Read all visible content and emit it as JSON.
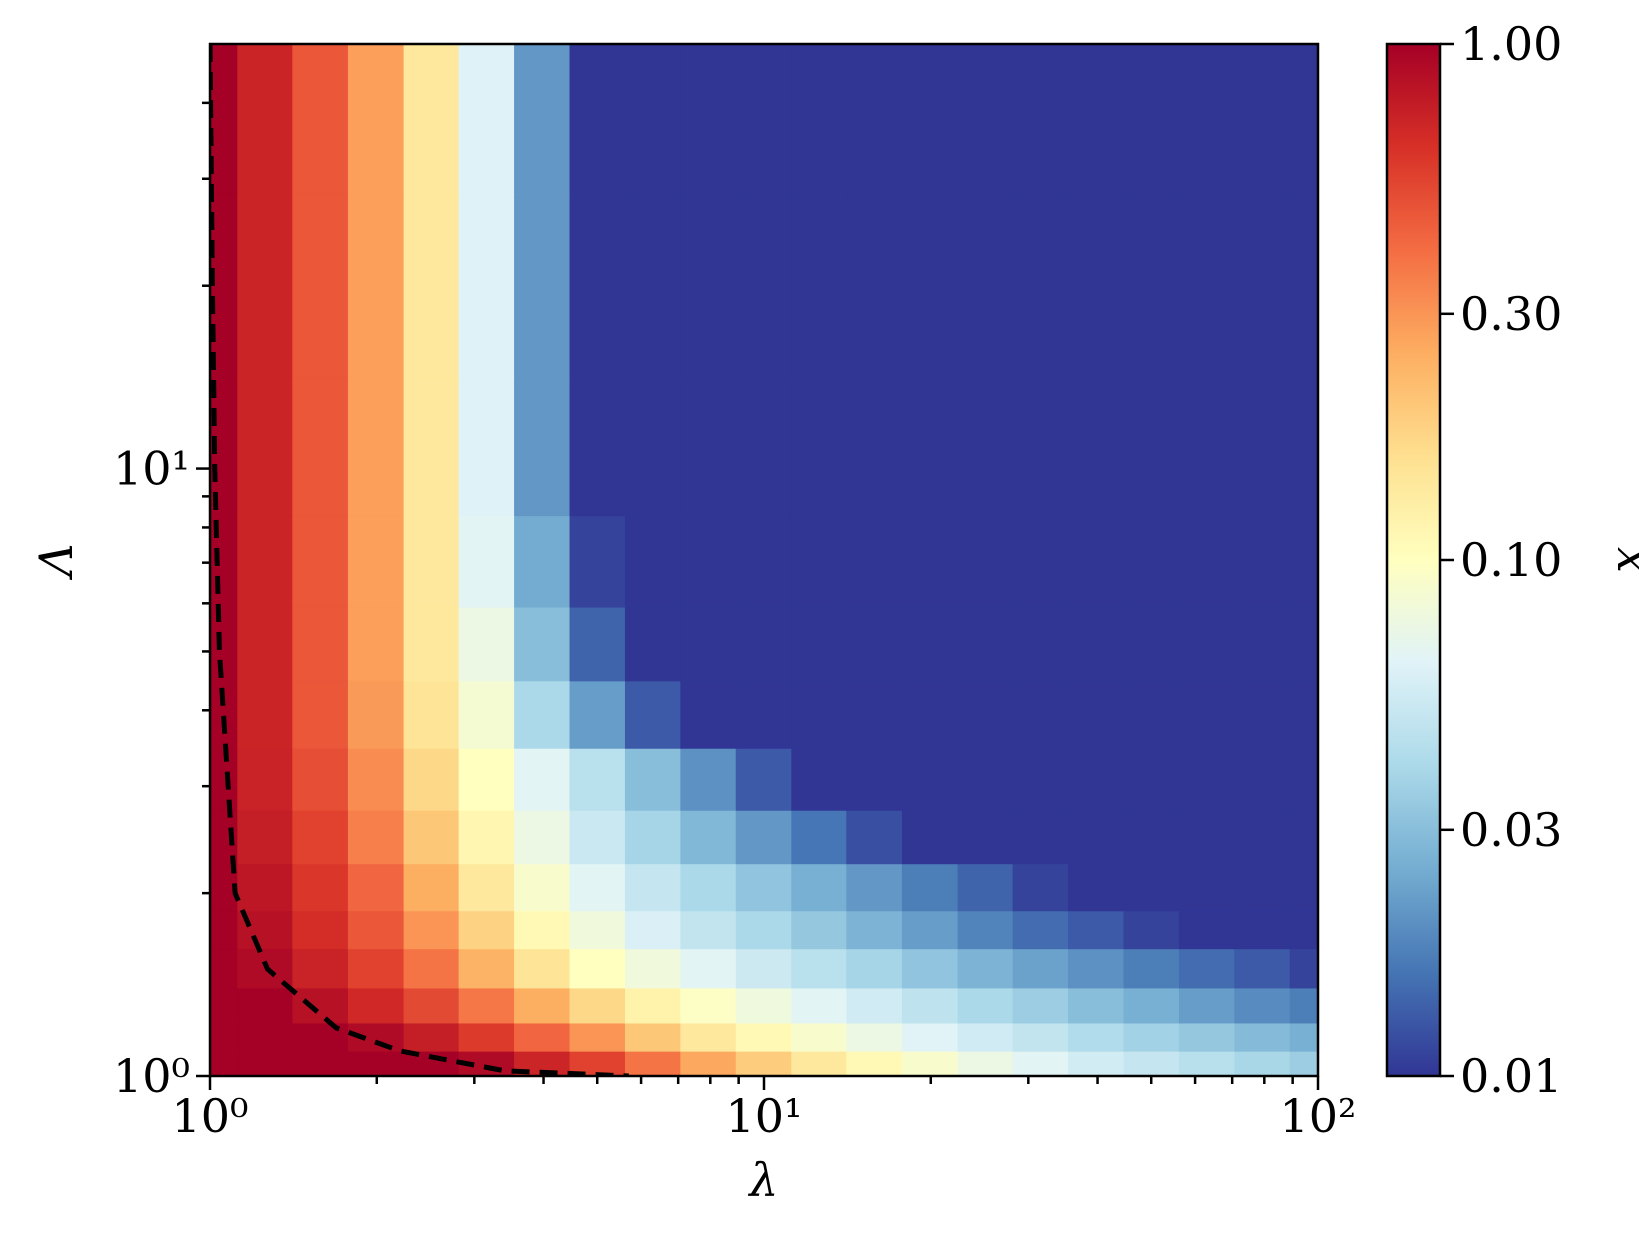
{
  "chart_data": {
    "type": "contour",
    "x_label": "λ",
    "y_label": "Λ",
    "colorbar_label": "x",
    "xscale": "log",
    "yscale": "log",
    "xlim": [
      1,
      100
    ],
    "ylim": [
      1,
      50
    ],
    "xticks": [
      {
        "value": 1,
        "label": "10⁰"
      },
      {
        "value": 10,
        "label": "10¹"
      },
      {
        "value": 100,
        "label": "10²"
      }
    ],
    "xminorticks": [
      2,
      3,
      4,
      5,
      6,
      7,
      8,
      9,
      20,
      30,
      40,
      50,
      60,
      70,
      80,
      90
    ],
    "yticks": [
      {
        "value": 1,
        "label": "10⁰"
      },
      {
        "value": 10,
        "label": "10¹"
      }
    ],
    "yminorticks": [
      2,
      3,
      4,
      5,
      6,
      7,
      8,
      9,
      20,
      30,
      40
    ],
    "clim": [
      0.01,
      1
    ],
    "cscale": "log",
    "cticks": [
      0.01,
      0.03,
      {
        "value": 0.1,
        "label": "0.10"
      },
      {
        "value": 0.3,
        "label": "0.30"
      },
      {
        "value": 1,
        "label": "1.00"
      }
    ],
    "colorscale": [
      "#313695",
      "#4575b4",
      "#74add1",
      "#abd9e9",
      "#e0f3f8",
      "#ffffbf",
      "#fee090",
      "#fdae61",
      "#f46d43",
      "#d73027",
      "#a50026"
    ],
    "x": [
      1,
      1.26,
      1.58,
      2,
      2.51,
      3.16,
      3.98,
      5.01,
      6.31,
      7.94,
      10,
      12.6,
      15.8,
      20,
      25.1,
      31.6,
      39.8,
      50.1,
      63.1,
      79.4,
      100
    ],
    "y": [
      1.05,
      1.15,
      1.3,
      1.5,
      1.75,
      2,
      2.5,
      3,
      4,
      5,
      7,
      10,
      20,
      40
    ],
    "z": [
      [
        1,
        1,
        1,
        1,
        1,
        0.9,
        0.7,
        0.55,
        0.38,
        0.26,
        0.19,
        0.14,
        0.11,
        0.09,
        0.075,
        0.065,
        0.056,
        0.05,
        0.044,
        0.039,
        0.035
      ],
      [
        1,
        1,
        1,
        0.9,
        0.75,
        0.58,
        0.42,
        0.3,
        0.2,
        0.14,
        0.11,
        0.09,
        0.075,
        0.064,
        0.055,
        0.048,
        0.042,
        0.037,
        0.033,
        0.029,
        0.026
      ],
      [
        1,
        1,
        0.85,
        0.68,
        0.52,
        0.37,
        0.25,
        0.17,
        0.12,
        0.095,
        0.078,
        0.065,
        0.055,
        0.047,
        0.04,
        0.035,
        0.03,
        0.026,
        0.022,
        0.019,
        0.017
      ],
      [
        1,
        0.9,
        0.72,
        0.55,
        0.38,
        0.24,
        0.15,
        0.1,
        0.08,
        0.065,
        0.053,
        0.045,
        0.038,
        0.032,
        0.027,
        0.023,
        0.02,
        0.017,
        0.015,
        0.013,
        0.011
      ],
      [
        1,
        0.85,
        0.65,
        0.47,
        0.3,
        0.18,
        0.11,
        0.08,
        0.06,
        0.048,
        0.04,
        0.033,
        0.027,
        0.022,
        0.018,
        0.015,
        0.013,
        0.011,
        0.01,
        0.01,
        0.01
      ],
      [
        1,
        0.8,
        0.6,
        0.42,
        0.25,
        0.14,
        0.09,
        0.065,
        0.05,
        0.04,
        0.032,
        0.026,
        0.021,
        0.017,
        0.014,
        0.011,
        0.01,
        0.01,
        0.01,
        0.01,
        0.01
      ],
      [
        1,
        0.75,
        0.55,
        0.35,
        0.2,
        0.115,
        0.075,
        0.052,
        0.038,
        0.028,
        0.021,
        0.016,
        0.012,
        0.01,
        0.01,
        0.01,
        0.01,
        0.01,
        0.01,
        0.01,
        0.01
      ],
      [
        1,
        0.72,
        0.5,
        0.32,
        0.17,
        0.1,
        0.065,
        0.045,
        0.03,
        0.02,
        0.013,
        0.01,
        0.01,
        0.01,
        0.01,
        0.01,
        0.01,
        0.01,
        0.01,
        0.01,
        0.01
      ],
      [
        1,
        0.71,
        0.47,
        0.29,
        0.15,
        0.085,
        0.04,
        0.022,
        0.013,
        0.01,
        0.01,
        0.01,
        0.01,
        0.01,
        0.01,
        0.01,
        0.01,
        0.01,
        0.01,
        0.01,
        0.01
      ],
      [
        1,
        0.71,
        0.47,
        0.28,
        0.14,
        0.075,
        0.03,
        0.014,
        0.01,
        0.01,
        0.01,
        0.01,
        0.01,
        0.01,
        0.01,
        0.01,
        0.01,
        0.01,
        0.01,
        0.01,
        0.01
      ],
      [
        1,
        0.71,
        0.47,
        0.28,
        0.14,
        0.065,
        0.025,
        0.011,
        0.01,
        0.01,
        0.01,
        0.01,
        0.01,
        0.01,
        0.01,
        0.01,
        0.01,
        0.01,
        0.01,
        0.01,
        0.01
      ],
      [
        1,
        0.71,
        0.47,
        0.28,
        0.14,
        0.062,
        0.021,
        0.01,
        0.01,
        0.01,
        0.01,
        0.01,
        0.01,
        0.01,
        0.01,
        0.01,
        0.01,
        0.01,
        0.01,
        0.01,
        0.01
      ],
      [
        1,
        0.71,
        0.47,
        0.28,
        0.14,
        0.062,
        0.021,
        0.01,
        0.01,
        0.01,
        0.01,
        0.01,
        0.01,
        0.01,
        0.01,
        0.01,
        0.01,
        0.01,
        0.01,
        0.01,
        0.01
      ],
      [
        1,
        0.71,
        0.47,
        0.28,
        0.14,
        0.062,
        0.021,
        0.01,
        0.01,
        0.01,
        0.01,
        0.01,
        0.01,
        0.01,
        0.01,
        0.01,
        0.01,
        0.01,
        0.01,
        0.01,
        0.01
      ]
    ],
    "lines": [
      {
        "color": "#000000",
        "dashed": true,
        "x": [
          1.0,
          1.01,
          1.02,
          1.04,
          1.11,
          1.27,
          1.69,
          2.2,
          3.4,
          5.7
        ],
        "y": [
          50,
          20,
          10,
          5,
          2,
          1.5,
          1.2,
          1.1,
          1.02,
          1.0
        ]
      }
    ]
  }
}
